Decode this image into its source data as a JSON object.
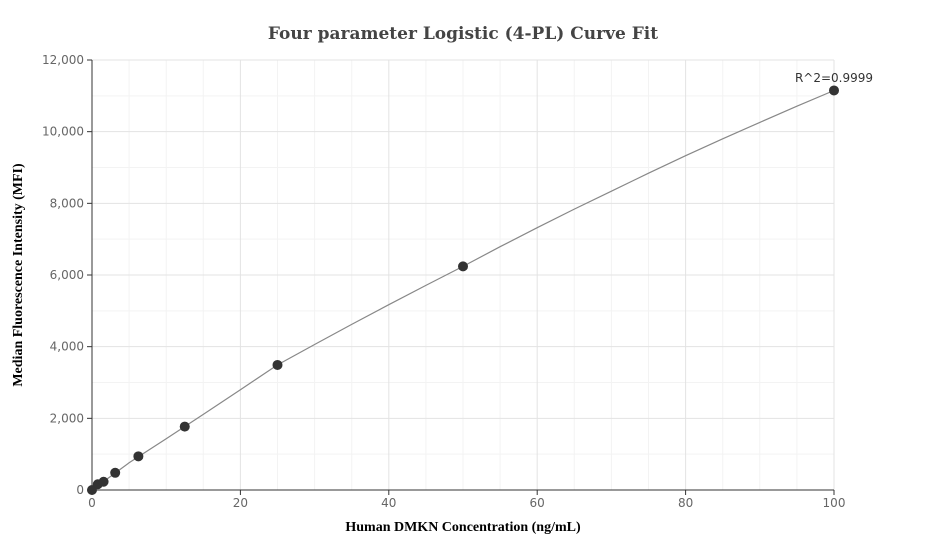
{
  "chart_data": {
    "type": "scatter",
    "title": "Four parameter Logistic (4-PL) Curve Fit",
    "xlabel": "Human DMKN Concentration (ng/mL)",
    "ylabel": "Median Fluorescence Intensity (MFI)",
    "xlim": [
      0,
      100
    ],
    "ylim": [
      0,
      12000
    ],
    "x_ticks": [
      0,
      20,
      40,
      60,
      80,
      100
    ],
    "y_ticks": [
      0,
      2000,
      4000,
      6000,
      8000,
      10000,
      12000
    ],
    "x_tick_labels": [
      "0",
      "20",
      "40",
      "60",
      "80",
      "100"
    ],
    "y_tick_labels": [
      "0",
      "2,000",
      "4,000",
      "6,000",
      "8,000",
      "10,000",
      "12,000"
    ],
    "grid": true,
    "series": [
      {
        "x": [
          0,
          0.78,
          1.56,
          3.125,
          6.25,
          12.5,
          25,
          50,
          100
        ],
        "y": [
          0,
          160,
          230,
          480,
          940,
          1770,
          3490,
          6240,
          11150
        ]
      }
    ],
    "fit_curve": {
      "x": [
        0,
        5,
        10,
        15,
        20,
        25,
        30,
        35,
        40,
        45,
        50,
        55,
        60,
        65,
        70,
        75,
        80,
        85,
        90,
        95,
        100
      ],
      "y": [
        0,
        760,
        1430,
        2110,
        2800,
        3490,
        4060,
        4620,
        5170,
        5710,
        6240,
        6790,
        7320,
        7840,
        8340,
        8840,
        9330,
        9800,
        10260,
        10710,
        11150
      ]
    },
    "annotation": "R^2=0.9999",
    "colors": {
      "points": "#333333",
      "curve": "#888888",
      "grid": "#e3e3e3",
      "title": "#444444"
    }
  }
}
